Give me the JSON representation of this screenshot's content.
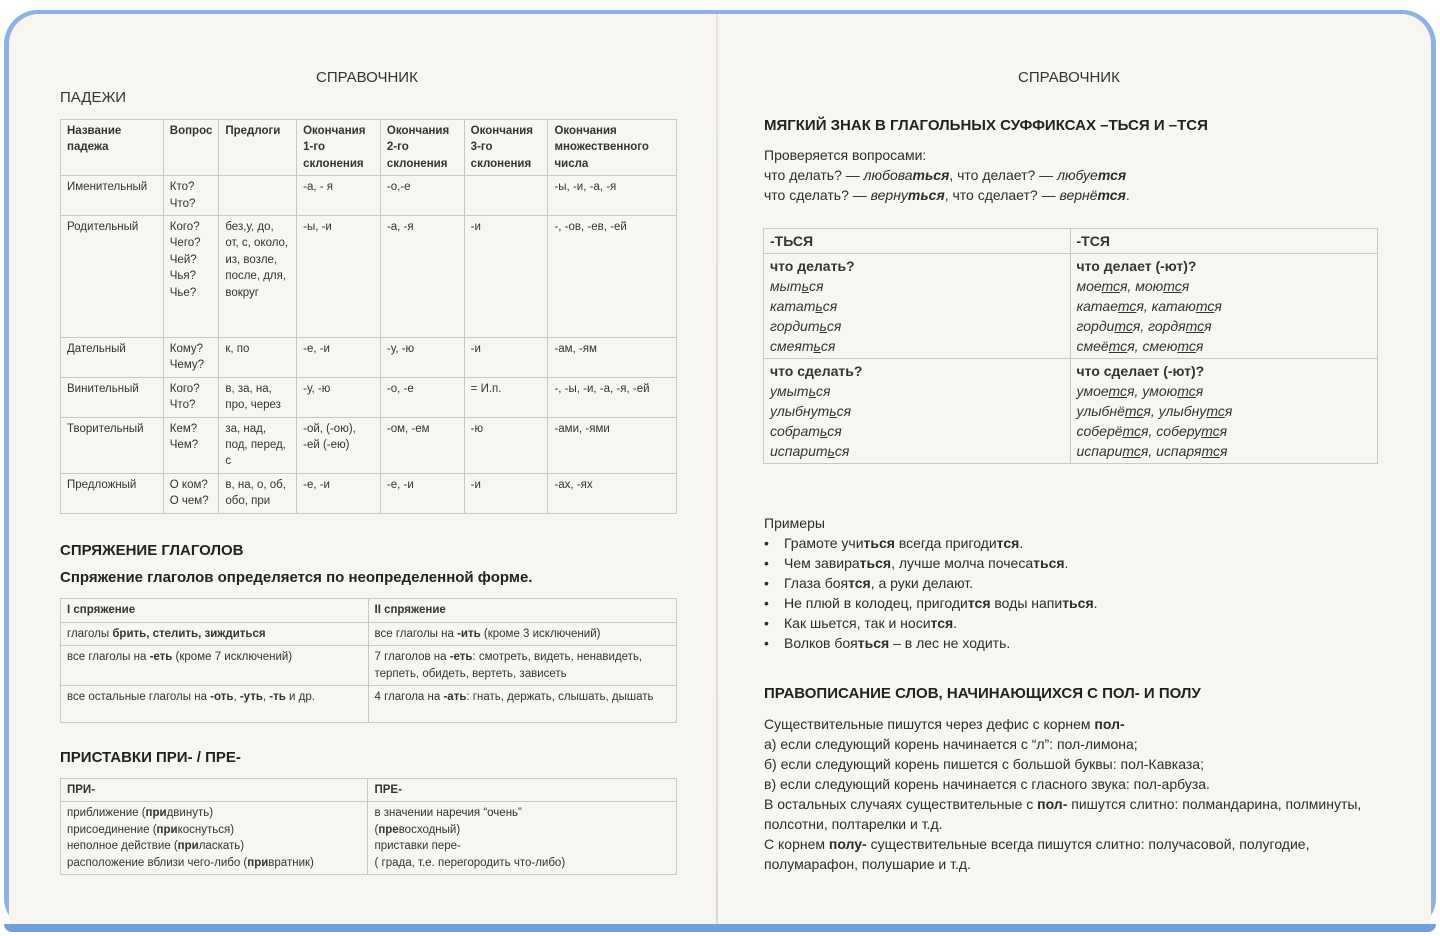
{
  "left_page": {
    "running_head": "СПРАВОЧНИК",
    "cases": {
      "title": "ПАДЕЖИ",
      "headers": [
        "Название падежа",
        "Вопрос",
        "Предлоги",
        "Окончания 1-го склонения",
        "Окончания 2-го склонения",
        "Окончания 3-го склонения",
        "Окончания множественного числа"
      ],
      "rows": [
        [
          "Именительный",
          "Кто? Что?",
          "",
          "-а, - я",
          "-о,-е",
          "",
          "-ы, -и, -а, -я"
        ],
        [
          "Родительный",
          "Кого? Чего? Чей? Чья? Чье?",
          "без,у, до, от, с, около, из, возле, после, для, вокруг",
          "-ы, -и",
          "-а, -я",
          "-и",
          "-, -ов, -ев, -ей"
        ],
        [
          "Дательный",
          "Кому? Чему?",
          "к, по",
          "-е, -и",
          "-у, -ю",
          "-и",
          "-ам, -ям"
        ],
        [
          "Винительный",
          "Кого? Что?",
          "в, за, на, про, через",
          "-у, -ю",
          "-о, -е",
          "= И.п.",
          "-, -ы, -и, -а, -я, -ей"
        ],
        [
          "Творительный",
          "Кем? Чем?",
          "за, над, под, перед, с",
          "-ой, (-ою), -ей (-ею)",
          "-ом, -ем",
          "-ю",
          "-ами, -ями"
        ],
        [
          "Предложный",
          "О ком? О чем?",
          "в, на, о, об, обо, при",
          "-е, -и",
          "-е, -и",
          "-и",
          "-ах, -ях"
        ]
      ]
    },
    "conjugation": {
      "title": "СПРЯЖЕНИЕ ГЛАГОЛОВ",
      "subtitle": "Спряжение глаголов определяется по неопределенной форме.",
      "headers": [
        "I спряжение",
        "II спряжение"
      ],
      "rows": [
        [
          [
            "глаголы ",
            {
              "b": "брить, стелить, зиждиться"
            }
          ],
          [
            "все глаголы на ",
            {
              "b": "-ить"
            },
            " (кроме 3 исключений)"
          ]
        ],
        [
          [
            "все глаголы на ",
            {
              "b": "-еть"
            },
            " (кроме 7 исключений)"
          ],
          [
            "7 глаголов на ",
            {
              "b": "-еть"
            },
            ": смотреть, видеть, ненавидеть, терпеть, обидеть, вертеть, зависеть"
          ]
        ],
        [
          [
            "все остальные глаголы на ",
            {
              "b": "-оть"
            },
            ", ",
            {
              "b": "-уть"
            },
            ", ",
            {
              "b": "-ть"
            },
            " и др."
          ],
          [
            "4 глагола на ",
            {
              "b": "-ать"
            },
            ": гнать, держать, слышать, дышать"
          ]
        ]
      ]
    },
    "prefixes": {
      "title": "ПРИСТАВКИ ПРИ- / ПРЕ-",
      "headers": [
        "ПРИ-",
        "ПРЕ-"
      ],
      "pri": [
        [
          "приближение (",
          {
            "b": "при"
          },
          "двинуть)"
        ],
        [
          "присоединение (",
          {
            "b": "при"
          },
          "коснуться)"
        ],
        [
          "неполное действие (",
          {
            "b": "при"
          },
          "ласкать)"
        ],
        [
          "расположение вблизи чего-либо (",
          {
            "b": "при"
          },
          "вратник)"
        ]
      ],
      "pre": [
        [
          "в значении наречия “очень”"
        ],
        [
          "(",
          {
            "b": "пре"
          },
          "восходный)"
        ],
        [
          "приставки пере-"
        ],
        [
          "( града, т.е. перегородить что-либо)"
        ]
      ]
    }
  },
  "right_page": {
    "running_head": "СПРАВОЧНИК",
    "soft_sign": {
      "title": "МЯГКИЙ ЗНАК В ГЛАГОЛЬНЫХ СУФФИКСАХ –ТЬСЯ И –ТСЯ",
      "intro": [
        [
          "Проверяется вопросами:"
        ],
        [
          " что делать? — ",
          {
            "i": "любова"
          },
          {
            "bi": "ться"
          },
          ", что делает? — ",
          {
            "i": "любуе"
          },
          {
            "bi": "тся"
          }
        ],
        [
          "что сделать? — ",
          {
            "i": "верну"
          },
          {
            "bi": "ться"
          },
          ", что сделает? — ",
          {
            "i": "вернё"
          },
          {
            "bi": "тся"
          },
          "."
        ]
      ],
      "headers": [
        "-ТЬСЯ",
        "-ТСЯ"
      ],
      "groups": [
        {
          "q_left": "что делать?",
          "q_right": "что делает (-ют)?",
          "left": [
            [
              "мыт",
              {
                "u": "ь"
              },
              "ся"
            ],
            [
              "катат",
              {
                "u": "ь"
              },
              "ся"
            ],
            [
              "гордит",
              {
                "u": "ь"
              },
              "ся"
            ],
            [
              "смеят",
              {
                "u": "ь"
              },
              "ся"
            ]
          ],
          "right": [
            [
              "мое",
              {
                "u": "тс"
              },
              "я, мою",
              {
                "u": "тс"
              },
              "я"
            ],
            [
              "катае",
              {
                "u": "тс"
              },
              "я, катаю",
              {
                "u": "тс"
              },
              "я"
            ],
            [
              "горди",
              {
                "u": "тс"
              },
              "я, гордя",
              {
                "u": "тс"
              },
              "я"
            ],
            [
              "смеё",
              {
                "u": "тс"
              },
              "я, смею",
              {
                "u": "тс"
              },
              "я"
            ]
          ]
        },
        {
          "q_left": "что сделать?",
          "q_right": "что сделает (-ют)?",
          "left": [
            [
              "умыт",
              {
                "u": "ь"
              },
              "ся"
            ],
            [
              "улыбнут",
              {
                "u": "ь"
              },
              "ся"
            ],
            [
              "собрат",
              {
                "u": "ь"
              },
              "ся"
            ],
            [
              "испарит",
              {
                "u": "ь"
              },
              "ся"
            ]
          ],
          "right": [
            [
              "умое",
              {
                "u": "тс"
              },
              "я, умою",
              {
                "u": "тс"
              },
              "я"
            ],
            [
              "улыбнё",
              {
                "u": "тс"
              },
              "я, улыбну",
              {
                "u": "тс"
              },
              "я"
            ],
            [
              "соберё",
              {
                "u": "тс"
              },
              "я, соберу",
              {
                "u": "тс"
              },
              "я"
            ],
            [
              "испари",
              {
                "u": "тс"
              },
              "я, испаря",
              {
                "u": "тс"
              },
              "я"
            ]
          ]
        }
      ]
    },
    "examples": {
      "label": "Примеры",
      "items": [
        [
          "Грамоте учи",
          {
            "b": "ться"
          },
          " всегда пригоди",
          {
            "b": "тся"
          },
          "."
        ],
        [
          "Чем завира",
          {
            "b": "ться"
          },
          ", лучше молча почеса",
          {
            "b": "ться"
          },
          "."
        ],
        [
          "Глаза боя",
          {
            "b": "тся"
          },
          ", а руки делают."
        ],
        [
          "Не плюй в колодец, пригоди",
          {
            "b": "тся"
          },
          " воды напи",
          {
            "b": "ться"
          },
          "."
        ],
        [
          "Как шьется, так и носи",
          {
            "b": "тся"
          },
          "."
        ],
        [
          "Волков боя",
          {
            "b": "ться"
          },
          " – в лес не ходить."
        ]
      ]
    },
    "pol": {
      "title": "ПРАВОПИСАНИЕ СЛОВ, НАЧИНАЮЩИХСЯ С ПОЛ- И ПОЛУ",
      "lines": [
        [
          "Существительные пишутся через дефис с корнем ",
          {
            "b": "пол-"
          }
        ],
        [
          "а) если следующий корень начинается с “л”: пол-лимона;"
        ],
        [
          "б) если следующий корень пишется с большой буквы: пол-Кавказа;"
        ],
        [
          "в) если следующий корень начинается с гласного звука: пол-арбуза."
        ],
        [
          "В остальных случаях существительные с ",
          {
            "b": "пол-"
          },
          " пишутся слитно: полмандарина, полминуты, полсотни, полтарелки и т.д."
        ],
        [
          "С корнем ",
          {
            "b": "полу-"
          },
          " существительные всегда пишутся слитно: получасовой, полугодие, полумарафон, полушарие и т.д."
        ]
      ]
    }
  },
  "colors": {
    "cover": "#8db3e6",
    "page": "#f7f6f1",
    "rule": "#c9c8c4"
  }
}
